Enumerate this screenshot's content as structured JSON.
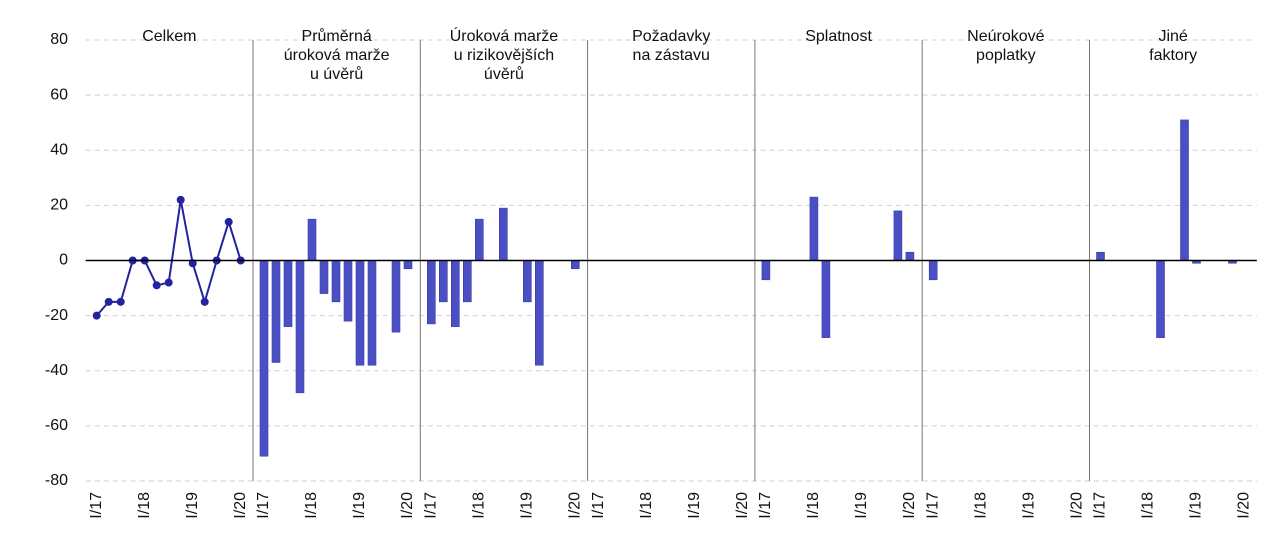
{
  "chart_data": [
    {
      "type": "line",
      "title": [
        "Celkem"
      ],
      "color": "#2323a0",
      "ylim": [
        -80,
        80
      ],
      "yticks": [
        -80,
        -60,
        -40,
        -20,
        0,
        20,
        40,
        60,
        80
      ],
      "grid": true,
      "categories": [
        "I/17",
        null,
        null,
        null,
        "I/18",
        null,
        null,
        null,
        "I/19",
        null,
        null,
        null,
        "I/20"
      ],
      "values": [
        -20,
        -15,
        -15,
        0,
        0,
        -9,
        -8,
        22,
        -1,
        -15,
        0,
        14,
        0
      ]
    },
    {
      "type": "bar",
      "title": [
        "Průměrná",
        "úroková marže",
        "u úvěrů"
      ],
      "color": "#4b4fc4",
      "ylim": [
        -80,
        80
      ],
      "categories": [
        "I/17",
        null,
        null,
        null,
        "I/18",
        null,
        null,
        null,
        "I/19",
        null,
        null,
        null,
        "I/20"
      ],
      "values": [
        -71,
        -37,
        -24,
        -48,
        15,
        -12,
        -15,
        -22,
        -38,
        -38,
        0,
        -26,
        -3
      ]
    },
    {
      "type": "bar",
      "title": [
        "Úroková marže",
        "u rizikovějších",
        "úvěrů"
      ],
      "color": "#4b4fc4",
      "ylim": [
        -80,
        80
      ],
      "categories": [
        "I/17",
        null,
        null,
        null,
        "I/18",
        null,
        null,
        null,
        "I/19",
        null,
        null,
        null,
        "I/20"
      ],
      "values": [
        -23,
        -15,
        -24,
        -15,
        15,
        0,
        19,
        0,
        -15,
        -38,
        0,
        0,
        -3
      ]
    },
    {
      "type": "bar",
      "title": [
        "Požadavky",
        "na zástavu"
      ],
      "color": "#4b4fc4",
      "ylim": [
        -80,
        80
      ],
      "categories": [
        "I/17",
        null,
        null,
        null,
        "I/18",
        null,
        null,
        null,
        "I/19",
        null,
        null,
        null,
        "I/20"
      ],
      "values": [
        0,
        0,
        0,
        0,
        0,
        0,
        0,
        0,
        0,
        0,
        0,
        0,
        0
      ]
    },
    {
      "type": "bar",
      "title": [
        "Splatnost"
      ],
      "color": "#4b4fc4",
      "ylim": [
        -80,
        80
      ],
      "categories": [
        "I/17",
        null,
        null,
        null,
        "I/18",
        null,
        null,
        null,
        "I/19",
        null,
        null,
        null,
        "I/20"
      ],
      "values": [
        -7,
        0,
        0,
        0,
        23,
        -28,
        0,
        0,
        0,
        0,
        0,
        18,
        3
      ]
    },
    {
      "type": "bar",
      "title": [
        "Neúrokové",
        "poplatky"
      ],
      "color": "#4b4fc4",
      "ylim": [
        -80,
        80
      ],
      "categories": [
        "I/17",
        null,
        null,
        null,
        "I/18",
        null,
        null,
        null,
        "I/19",
        null,
        null,
        null,
        "I/20"
      ],
      "values": [
        -7,
        0,
        0,
        0,
        0,
        0,
        0,
        0,
        0,
        0,
        0,
        0,
        0
      ]
    },
    {
      "type": "bar",
      "title": [
        "Jiné",
        "faktory"
      ],
      "color": "#4b4fc4",
      "ylim": [
        -80,
        80
      ],
      "categories": [
        "I/17",
        null,
        null,
        null,
        "I/18",
        null,
        null,
        null,
        "I/19",
        null,
        null,
        null,
        "I/20"
      ],
      "values": [
        3,
        0,
        0,
        0,
        0,
        -28,
        0,
        51,
        -1,
        0,
        0,
        -1,
        0
      ]
    }
  ]
}
